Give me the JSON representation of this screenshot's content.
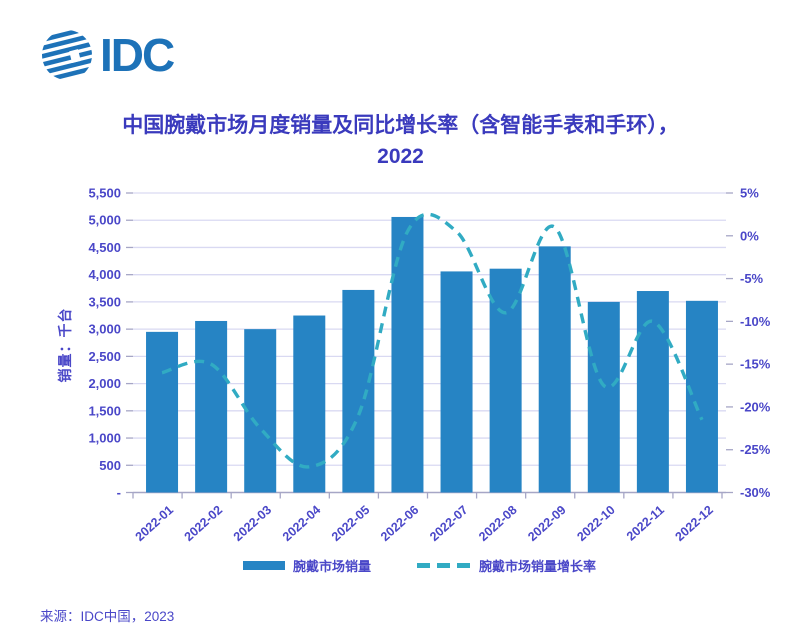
{
  "header": {
    "logo_text": "IDC"
  },
  "title": {
    "line1": "中国腕戴市场月度销量及同比增长率（含智能手表和手环），",
    "line2": "2022"
  },
  "source": {
    "text": "来源：IDC中国，2023"
  },
  "colors": {
    "bar": "#2684c4",
    "line": "#31abc3",
    "title_text": "#3a3abd",
    "label_text": "#4a47c8",
    "grid": "#d9d9f2",
    "axis": "#a6a6c6",
    "logo": "#1d72b8"
  },
  "chart_data": {
    "type": "bar",
    "title": "中国腕戴市场月度销量及同比增长率（含智能手表和手环），2022",
    "categories": [
      "2022-01",
      "2022-02",
      "2022-03",
      "2022-04",
      "2022-05",
      "2022-06",
      "2022-07",
      "2022-08",
      "2022-09",
      "2022-10",
      "2022-11",
      "2022-12"
    ],
    "series": [
      {
        "name": "腕戴市场销量",
        "type": "bar",
        "axis": "left",
        "unit": "千台",
        "values": [
          2950,
          3150,
          3000,
          3250,
          3720,
          5060,
          4060,
          4110,
          4520,
          3500,
          3700,
          3520
        ]
      },
      {
        "name": "腕戴市场销量增长率",
        "type": "line",
        "axis": "right",
        "unit": "%",
        "values": [
          -16,
          -15,
          -22.5,
          -27,
          -21,
          0.5,
          0.5,
          -9,
          1,
          -17.5,
          -10,
          -21.5
        ]
      }
    ],
    "y_left": {
      "label": "销量：千台",
      "min": 0,
      "max": 5500,
      "step": 500,
      "ticks": [
        "-",
        "500",
        "1,000",
        "1,500",
        "2,000",
        "2,500",
        "3,000",
        "3,500",
        "4,000",
        "4,500",
        "5,000",
        "5,500"
      ]
    },
    "y_right": {
      "min": -30,
      "max": 5,
      "step": 5,
      "ticks": [
        "-30%",
        "-25%",
        "-20%",
        "-15%",
        "-10%",
        "-5%",
        "0%",
        "5%"
      ]
    },
    "legend_position": "bottom",
    "grid": true
  }
}
